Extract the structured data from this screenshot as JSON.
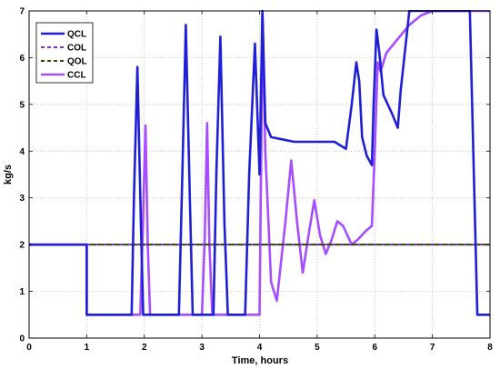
{
  "chart_data": {
    "type": "line",
    "title": "",
    "xlabel": "Time, hours",
    "ylabel": "kg/s",
    "xlim": [
      0,
      8
    ],
    "ylim": [
      0,
      7
    ],
    "xticks": [
      "0",
      "1",
      "2",
      "3",
      "4",
      "5",
      "6",
      "7",
      "8"
    ],
    "yticks": [
      "0",
      "1",
      "2",
      "3",
      "4",
      "5",
      "6",
      "7"
    ],
    "grid": "dotted",
    "legend": "top-left",
    "series": [
      {
        "name": "QCL",
        "color": "#1f1fd6",
        "dash": "solid",
        "x": [
          0,
          1,
          1.0,
          1.78,
          1.82,
          1.88,
          1.94,
          1.98,
          2.6,
          2.66,
          2.72,
          2.79,
          2.84,
          3.2,
          3.25,
          3.32,
          3.39,
          3.45,
          3.75,
          3.82,
          3.92,
          4.0,
          4.05,
          4.1,
          4.2,
          4.4,
          4.6,
          4.9,
          5.3,
          5.5,
          5.6,
          5.68,
          5.73,
          5.78,
          5.86,
          5.95,
          5.98,
          6.03,
          6.08,
          6.15,
          6.3,
          6.4,
          6.45,
          6.6,
          7.0,
          7.5,
          7.65,
          7.72,
          7.78,
          8.0
        ],
        "y": [
          2,
          2,
          0.5,
          0.5,
          3.0,
          5.8,
          2.5,
          0.5,
          0.5,
          3.5,
          6.7,
          3.0,
          0.5,
          0.5,
          3.5,
          6.45,
          2.5,
          0.5,
          0.5,
          3.5,
          6.3,
          3.5,
          7.0,
          4.6,
          4.3,
          4.25,
          4.2,
          4.2,
          4.2,
          4.05,
          5.0,
          5.9,
          5.5,
          4.3,
          3.9,
          3.7,
          5.0,
          6.6,
          6.1,
          5.2,
          4.8,
          4.5,
          5.3,
          7.0,
          7.0,
          7.0,
          7.0,
          3.5,
          0.5,
          0.5
        ]
      },
      {
        "name": "COL",
        "color": "#8a2be2",
        "dash": "dashed",
        "x": [
          0,
          8
        ],
        "y": [
          2,
          2
        ]
      },
      {
        "name": "QOL",
        "color": "#2e4a00",
        "dash": "dashed",
        "x": [
          0,
          8
        ],
        "y": [
          2,
          2
        ]
      },
      {
        "name": "CCL",
        "color": "#a64dff",
        "dash": "solid",
        "x": [
          0,
          1,
          1.0,
          1.93,
          1.97,
          2.02,
          2.06,
          2.1,
          3.0,
          3.05,
          3.09,
          3.13,
          3.18,
          4.0,
          4.03,
          4.05,
          4.1,
          4.2,
          4.3,
          4.45,
          4.55,
          4.65,
          4.75,
          4.85,
          4.95,
          5.05,
          5.15,
          5.25,
          5.35,
          5.45,
          5.6,
          5.7,
          5.85,
          5.95,
          6.0,
          6.05,
          6.1,
          6.2,
          6.4,
          6.6,
          6.8,
          7.0,
          7.5,
          8.0
        ],
        "y": [
          2,
          2,
          0.5,
          0.5,
          2.2,
          4.55,
          2.0,
          0.5,
          0.5,
          2.2,
          4.6,
          2.0,
          0.5,
          0.5,
          4.0,
          7.0,
          4.0,
          1.2,
          0.8,
          2.5,
          3.8,
          2.5,
          1.4,
          2.2,
          2.95,
          2.2,
          1.8,
          2.1,
          2.5,
          2.4,
          2.0,
          2.1,
          2.3,
          2.4,
          4.0,
          5.9,
          5.7,
          6.1,
          6.4,
          6.7,
          6.9,
          7.0,
          7.0,
          7.0
        ]
      }
    ]
  }
}
